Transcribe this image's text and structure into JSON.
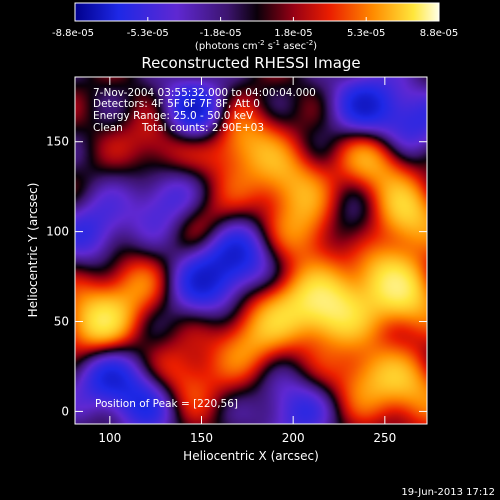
{
  "chart_data": {
    "type": "heatmap",
    "title": "Reconstructed RHESSI Image",
    "xlabel": "Heliocentric X (arcsec)",
    "ylabel": "Heliocentric Y (arcsec)",
    "xlim": [
      81,
      273
    ],
    "ylim": [
      -7,
      186
    ],
    "x_ticks": [
      100,
      150,
      200,
      250
    ],
    "y_ticks": [
      0,
      50,
      100,
      150
    ],
    "colorbar": {
      "ticks": [
        "-8.8e-05",
        "-5.3e-05",
        "-1.8e-05",
        "1.8e-05",
        "5.3e-05",
        "8.8e-05"
      ],
      "unit_main": "(photons cm",
      "unit_sup1": "-2",
      "unit_mid": " s",
      "unit_sup2": "-1",
      "unit_tail": " asec",
      "unit_sup3": "-2",
      "unit_close": ")",
      "range": [
        -8.8e-05,
        8.8e-05
      ]
    },
    "annotations": {
      "time": "7-Nov-2004 03:55:32.000 to 04:00:04.000",
      "detectors": "Detectors: 4F 5F 6F 7F 8F, Att 0",
      "energy": "Energy Range: 25.0 - 50.0 keV",
      "method": "Clean",
      "counts": "Total counts: 2.90E+03",
      "peak": "Position of Peak = [220,56]"
    },
    "peak_position": [
      220,
      56
    ],
    "blobs": [
      {
        "x": 220,
        "y": 56,
        "v": 1.0
      },
      {
        "x": 92,
        "y": 48,
        "v": 0.95
      },
      {
        "x": 262,
        "y": 62,
        "v": 0.8
      },
      {
        "x": 262,
        "y": 108,
        "v": 0.85
      },
      {
        "x": 244,
        "y": 140,
        "v": 0.7
      },
      {
        "x": 170,
        "y": 150,
        "v": 0.75
      },
      {
        "x": 130,
        "y": 150,
        "v": 0.6
      },
      {
        "x": 196,
        "y": 128,
        "v": 0.65
      },
      {
        "x": 210,
        "y": 100,
        "v": 0.7
      },
      {
        "x": 140,
        "y": 18,
        "v": 0.6
      },
      {
        "x": 176,
        "y": 40,
        "v": 0.6
      },
      {
        "x": 240,
        "y": 20,
        "v": 0.65
      },
      {
        "x": 266,
        "y": 10,
        "v": 0.6
      },
      {
        "x": 196,
        "y": 60,
        "v": 0.55
      },
      {
        "x": 150,
        "y": 110,
        "v": 0.4
      },
      {
        "x": 112,
        "y": 70,
        "v": 0.5
      },
      {
        "x": 244,
        "y": 78,
        "v": 0.65
      },
      {
        "x": 92,
        "y": 100,
        "v": -0.6
      },
      {
        "x": 145,
        "y": 165,
        "v": -1.0
      },
      {
        "x": 170,
        "y": 85,
        "v": -0.8
      },
      {
        "x": 132,
        "y": 118,
        "v": -0.7
      },
      {
        "x": 96,
        "y": 20,
        "v": -0.7
      },
      {
        "x": 240,
        "y": 170,
        "v": -0.8
      },
      {
        "x": 232,
        "y": 100,
        "v": -0.5
      },
      {
        "x": 120,
        "y": 6,
        "v": -0.7
      },
      {
        "x": 200,
        "y": 0,
        "v": -0.6
      },
      {
        "x": 150,
        "y": 70,
        "v": -0.65
      },
      {
        "x": 266,
        "y": 160,
        "v": -0.6
      }
    ]
  },
  "footer": {
    "date": "19-Jun-2013 17:12"
  }
}
